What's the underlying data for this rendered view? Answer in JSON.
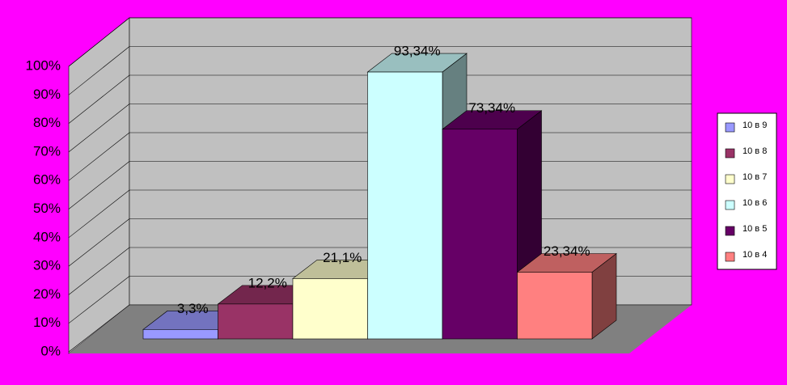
{
  "chart_data": {
    "type": "bar3d",
    "series": [
      {
        "name": "10 в 9",
        "color": "#9999ff",
        "values": [
          3.3
        ],
        "value_labels": [
          "3,3%"
        ]
      },
      {
        "name": "10 в 8",
        "color": "#993366",
        "values": [
          12.2
        ],
        "value_labels": [
          "12,2%"
        ]
      },
      {
        "name": "10 в 7",
        "color": "#ffffcc",
        "values": [
          21.1
        ],
        "value_labels": [
          "21,1%"
        ]
      },
      {
        "name": "10 в 6",
        "color": "#ccffff",
        "values": [
          93.34
        ],
        "value_labels": [
          "93,34%"
        ]
      },
      {
        "name": "10 в 5",
        "color": "#660066",
        "values": [
          73.34
        ],
        "value_labels": [
          "73,34%"
        ]
      },
      {
        "name": "10 в 4",
        "color": "#ff8080",
        "values": [
          23.34
        ],
        "value_labels": [
          "23,34%"
        ]
      }
    ],
    "ylim": [
      0,
      100
    ],
    "yticks": [
      {
        "value": 0,
        "label": "0%"
      },
      {
        "value": 10,
        "label": "10%"
      },
      {
        "value": 20,
        "label": "20%"
      },
      {
        "value": 30,
        "label": "30%"
      },
      {
        "value": 40,
        "label": "40%"
      },
      {
        "value": 50,
        "label": "50%"
      },
      {
        "value": 60,
        "label": "60%"
      },
      {
        "value": 70,
        "label": "70%"
      },
      {
        "value": 80,
        "label": "80%"
      },
      {
        "value": 90,
        "label": "90%"
      },
      {
        "value": 100,
        "label": "100%"
      }
    ],
    "grid": true,
    "legend": "right"
  }
}
